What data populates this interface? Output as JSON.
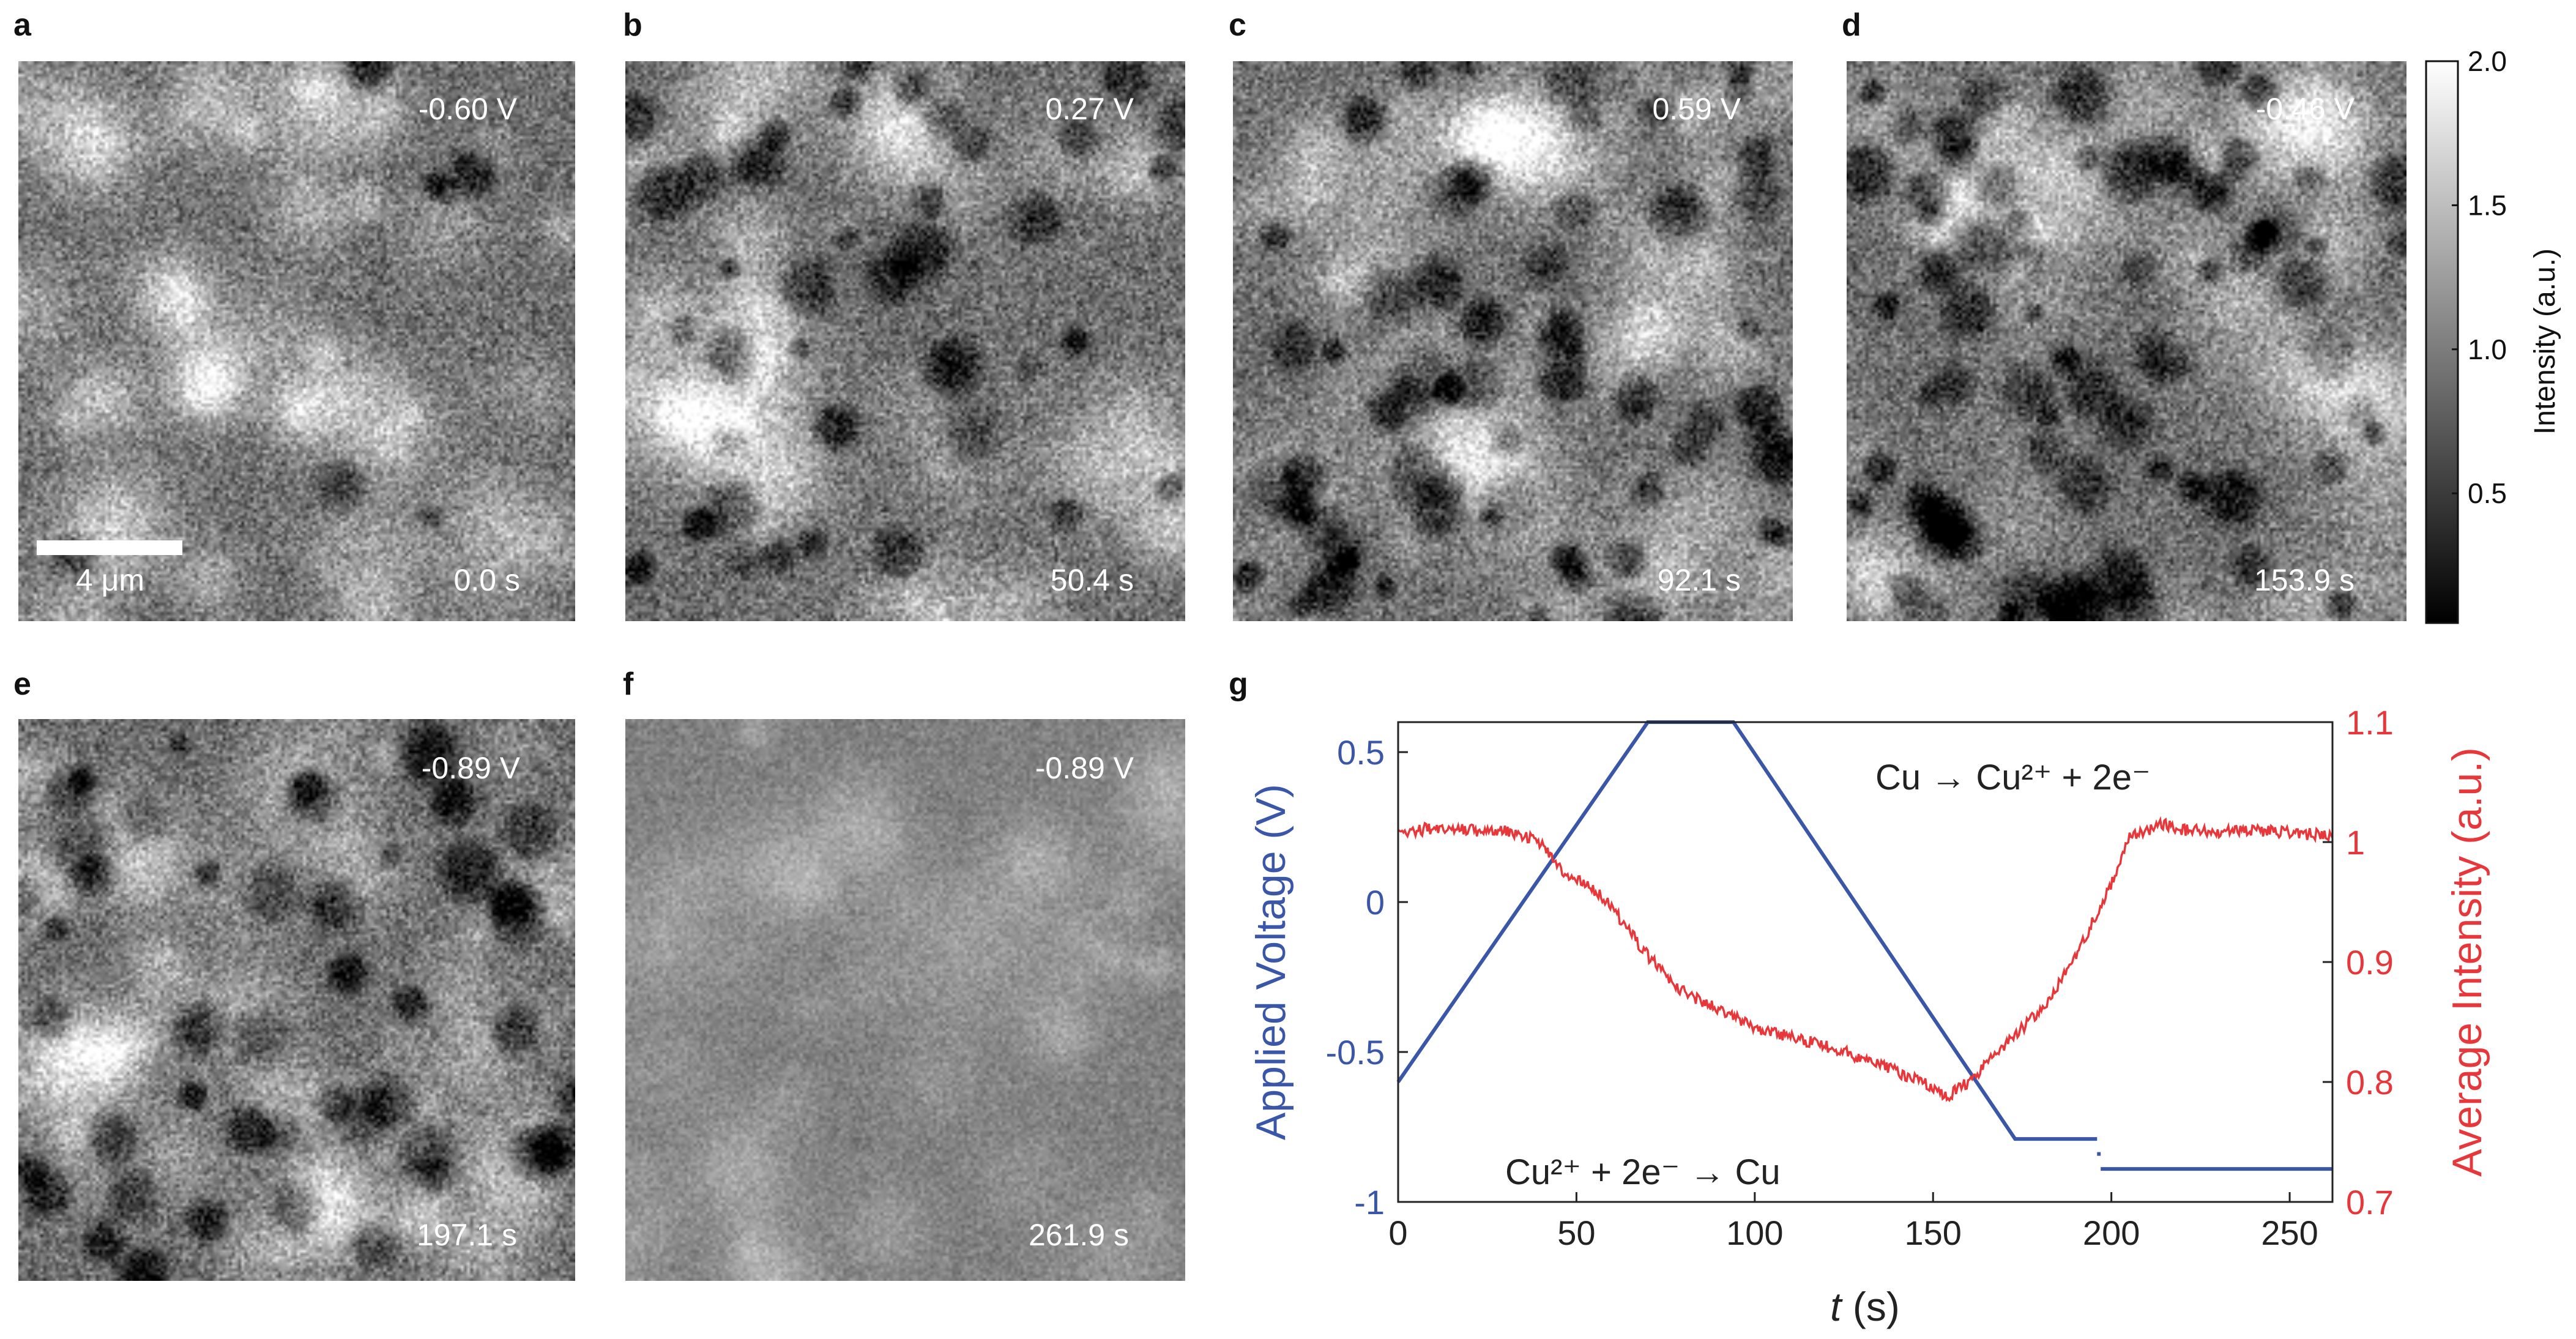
{
  "panels": [
    {
      "letter": "a",
      "voltage": "-0.60 V",
      "time": "0.0 s",
      "density": 0.1,
      "mean": 112,
      "contrast": 1.0,
      "seed": 11,
      "scalebar": "4 μm"
    },
    {
      "letter": "b",
      "voltage": "0.27 V",
      "time": "50.4 s",
      "density": 0.55,
      "mean": 110,
      "contrast": 1.0,
      "seed": 23
    },
    {
      "letter": "c",
      "voltage": "0.59 V",
      "time": "92.1 s",
      "density": 0.85,
      "mean": 112,
      "contrast": 1.0,
      "seed": 37
    },
    {
      "letter": "d",
      "voltage": "-0.46 V",
      "time": "153.9 s",
      "density": 1.0,
      "mean": 112,
      "contrast": 1.0,
      "seed": 53
    },
    {
      "letter": "e",
      "voltage": "-0.89 V",
      "time": "197.1 s",
      "density": 0.65,
      "mean": 108,
      "contrast": 0.95,
      "seed": 71
    },
    {
      "letter": "f",
      "voltage": "-0.89 V",
      "time": "261.9 s",
      "density": 0.0,
      "mean": 128,
      "contrast": 0.45,
      "seed": 97
    }
  ],
  "colorbar": {
    "label": "Intensity (a.u.)",
    "ticks": [
      "0.5",
      "1.0",
      "1.5",
      "2.0"
    ],
    "tick_values": [
      0.5,
      1.0,
      1.5,
      2.0
    ],
    "range": [
      0.05,
      2.0
    ]
  },
  "chart_data": {
    "type": "line",
    "panel_letter": "g",
    "xlabel_italic": "t",
    "xlabel_unit": " (s)",
    "ylabel_left": "Applied Voltage (V)",
    "ylabel_right": "Average Intensity (a.u.)",
    "xlim": [
      0,
      262
    ],
    "ylim_left": [
      -1,
      0.6
    ],
    "ylim_right": [
      0.7,
      1.1
    ],
    "x_ticks": [
      0,
      50,
      100,
      150,
      200,
      250
    ],
    "x_tick_labels": [
      "0",
      "50",
      "100",
      "150",
      "200",
      "250"
    ],
    "left_ticks": [
      -1,
      -0.5,
      0,
      0.5
    ],
    "left_tick_labels": [
      "-1",
      "-0.5",
      "0",
      "0.5"
    ],
    "right_ticks": [
      0.7,
      0.8,
      0.9,
      1.0,
      1.1
    ],
    "right_tick_labels": [
      "0.7",
      "0.8",
      "0.9",
      "1",
      "1.1"
    ],
    "annotation_oxidation": "Cu → Cu²⁺ + 2e⁻",
    "annotation_reduction": "Cu²⁺ + 2e⁻ → Cu",
    "series": [
      {
        "name": "Applied Voltage",
        "axis": "left",
        "color": "#3a56a8",
        "x": [
          0,
          70,
          94,
          173,
          196,
          196,
          197,
          197,
          262
        ],
        "y": [
          -0.6,
          0.6,
          0.6,
          -0.79,
          -0.79,
          -0.84,
          -0.84,
          -0.89,
          -0.89
        ]
      },
      {
        "name": "Average Intensity",
        "axis": "right",
        "color": "#e8373a",
        "x": [
          0,
          10,
          20,
          30,
          35,
          40,
          45,
          48,
          50,
          55,
          60,
          65,
          70,
          75,
          80,
          90,
          100,
          110,
          120,
          130,
          140,
          145,
          150,
          153,
          155,
          160,
          165,
          170,
          175,
          180,
          185,
          190,
          195,
          200,
          205,
          210,
          215,
          220,
          230,
          240,
          250,
          262
        ],
        "y": [
          1.007,
          1.012,
          1.01,
          1.009,
          1.006,
          1.0,
          0.98,
          0.972,
          0.97,
          0.96,
          0.945,
          0.925,
          0.905,
          0.89,
          0.875,
          0.86,
          0.845,
          0.838,
          0.83,
          0.82,
          0.808,
          0.802,
          0.795,
          0.788,
          0.79,
          0.8,
          0.815,
          0.83,
          0.845,
          0.86,
          0.88,
          0.905,
          0.935,
          0.965,
          1.005,
          1.01,
          1.015,
          1.01,
          1.008,
          1.01,
          1.008,
          1.005
        ]
      }
    ]
  }
}
